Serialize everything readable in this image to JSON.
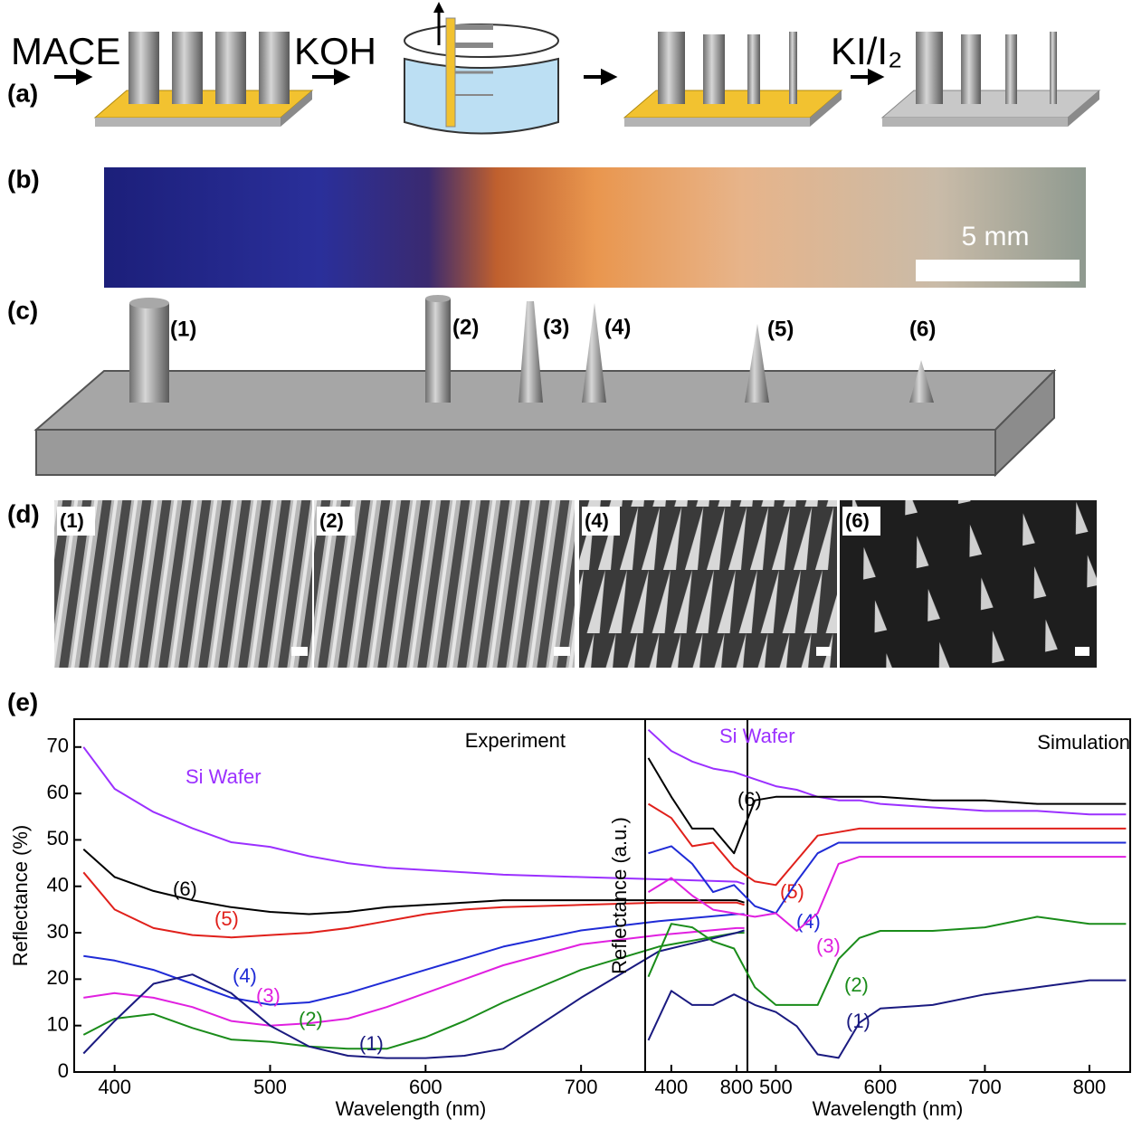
{
  "panels": {
    "a": {
      "label": "(a)",
      "steps": [
        "MACE",
        "KOH",
        "KI/I₂"
      ]
    },
    "b": {
      "label": "(b)",
      "scale": "5 mm"
    },
    "c": {
      "label": "(c)",
      "markers": [
        "(1)",
        "(2)",
        "(3)",
        "(4)",
        "(5)",
        "(6)"
      ]
    },
    "d": {
      "label": "(d)",
      "images": [
        "(1)",
        "(2)",
        "(4)",
        "(6)"
      ]
    },
    "e": {
      "label": "(e)"
    }
  },
  "chart_data": [
    {
      "type": "line",
      "title": "Experiment",
      "x_label": "Wavelength (nm)",
      "y_label": "Reflectance (%)",
      "x": [
        380,
        400,
        425,
        450,
        475,
        500,
        525,
        550,
        575,
        600,
        625,
        650,
        700,
        750,
        800,
        805
      ],
      "xlim": [
        374,
        807
      ],
      "ylim": [
        0,
        76
      ],
      "xticks": [
        400,
        500,
        600,
        700,
        800
      ],
      "yticks": [
        0,
        10,
        20,
        30,
        40,
        50,
        60,
        70
      ],
      "series": [
        {
          "name": "Si Wafer",
          "color": "#9b30ff",
          "values": [
            70,
            61,
            56,
            52.5,
            49.5,
            48.5,
            46.5,
            45,
            44,
            43.5,
            43,
            42.5,
            42,
            41.5,
            41,
            40.5
          ]
        },
        {
          "name": "(6)",
          "color": "#000000",
          "values": [
            48,
            42,
            39,
            37,
            35.5,
            34.5,
            34,
            34.5,
            35.5,
            36,
            36.5,
            37,
            37,
            37,
            37,
            36.5
          ]
        },
        {
          "name": "(5)",
          "color": "#e0201b",
          "values": [
            43,
            35,
            31,
            29.5,
            29,
            29.5,
            30,
            31,
            32.5,
            34,
            35,
            35.5,
            36,
            36.5,
            36.5,
            36
          ]
        },
        {
          "name": "(4)",
          "color": "#1f2bd6",
          "values": [
            25,
            24,
            22,
            19,
            16,
            14.5,
            15,
            17,
            19.5,
            22,
            24.5,
            27,
            30.5,
            32.5,
            34,
            34
          ]
        },
        {
          "name": "(3)",
          "color": "#e020e0",
          "values": [
            16,
            17,
            16,
            14,
            11,
            10,
            10.5,
            11.5,
            14,
            17,
            20,
            23,
            27.5,
            29.5,
            31,
            31
          ]
        },
        {
          "name": "(2)",
          "color": "#1a8c1a",
          "values": [
            8,
            11.5,
            12.5,
            9.5,
            7,
            6.5,
            5.5,
            5,
            5,
            7.5,
            11,
            15,
            22,
            27,
            30,
            30
          ]
        },
        {
          "name": "(1)",
          "color": "#1a1a80",
          "values": [
            4,
            11,
            19,
            21,
            17,
            10,
            5.5,
            3.5,
            3,
            3,
            3.5,
            5,
            16,
            26,
            30,
            30.5
          ]
        }
      ]
    },
    {
      "type": "line",
      "title": "Simulation",
      "x_label": "Wavelength (nm)",
      "y_label": "Reflectance (a.u.)",
      "x": [
        378,
        400,
        420,
        440,
        460,
        480,
        500,
        520,
        540,
        560,
        580,
        600,
        650,
        700,
        750,
        800,
        835
      ],
      "xlim": [
        375,
        839
      ],
      "ylim": [
        0,
        1
      ],
      "xticks": [
        400,
        500,
        600,
        700,
        800
      ],
      "series": [
        {
          "name": "Si Wafer",
          "color": "#9b30ff",
          "values": [
            0.97,
            0.91,
            0.88,
            0.86,
            0.85,
            0.83,
            0.81,
            0.8,
            0.78,
            0.77,
            0.77,
            0.76,
            0.75,
            0.74,
            0.74,
            0.73,
            0.73
          ]
        },
        {
          "name": "(6)",
          "color": "#000000",
          "values": [
            0.89,
            0.78,
            0.69,
            0.69,
            0.62,
            0.77,
            0.78,
            0.78,
            0.78,
            0.78,
            0.78,
            0.78,
            0.77,
            0.77,
            0.76,
            0.76,
            0.76
          ]
        },
        {
          "name": "(5)",
          "color": "#e0201b",
          "values": [
            0.76,
            0.72,
            0.64,
            0.65,
            0.58,
            0.54,
            0.53,
            0.6,
            0.67,
            0.68,
            0.69,
            0.69,
            0.69,
            0.69,
            0.69,
            0.69,
            0.69
          ]
        },
        {
          "name": "(4)",
          "color": "#1f2bd6",
          "values": [
            0.62,
            0.64,
            0.59,
            0.51,
            0.53,
            0.47,
            0.45,
            0.54,
            0.62,
            0.65,
            0.65,
            0.65,
            0.65,
            0.65,
            0.65,
            0.65,
            0.65
          ]
        },
        {
          "name": "(3)",
          "color": "#e020e0",
          "values": [
            0.51,
            0.55,
            0.5,
            0.46,
            0.45,
            0.44,
            0.45,
            0.4,
            0.45,
            0.59,
            0.61,
            0.61,
            0.61,
            0.61,
            0.61,
            0.61,
            0.61
          ]
        },
        {
          "name": "(2)",
          "color": "#1a8c1a",
          "values": [
            0.27,
            0.42,
            0.41,
            0.37,
            0.35,
            0.24,
            0.19,
            0.19,
            0.19,
            0.32,
            0.38,
            0.4,
            0.4,
            0.41,
            0.44,
            0.42,
            0.42
          ]
        },
        {
          "name": "(1)",
          "color": "#1a1a80",
          "values": [
            0.09,
            0.23,
            0.19,
            0.19,
            0.22,
            0.19,
            0.17,
            0.13,
            0.05,
            0.04,
            0.14,
            0.18,
            0.19,
            0.22,
            0.24,
            0.26,
            0.26
          ]
        }
      ]
    }
  ]
}
